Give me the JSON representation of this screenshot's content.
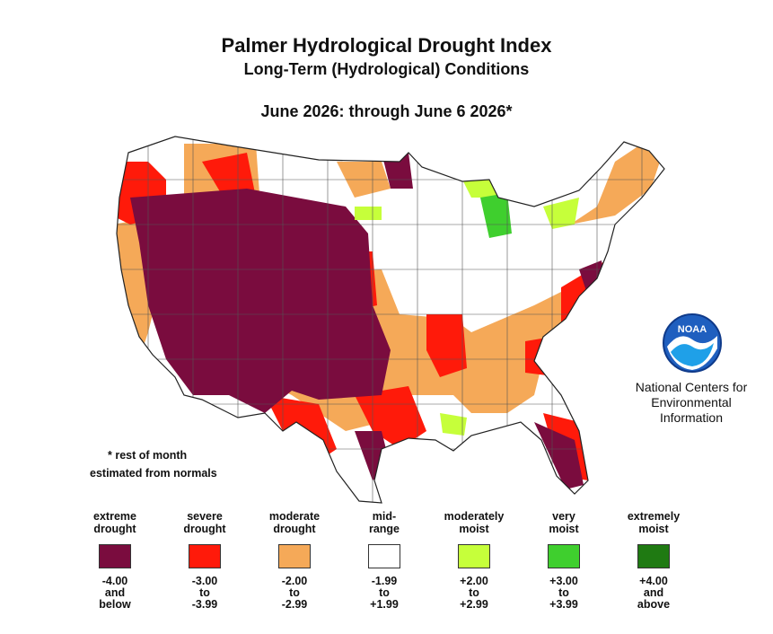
{
  "header": {
    "title": "Palmer Hydrological Drought Index",
    "subtitle": "Long-Term (Hydrological) Conditions",
    "period": "June 2026: through June  6 2026*"
  },
  "notes": {
    "line1": "* rest of month",
    "line2": "estimated from normals"
  },
  "branding": {
    "logo_text": "NOAA",
    "org_line1": "National Centers for",
    "org_line2": "Environmental",
    "org_line3": "Information"
  },
  "legend": [
    {
      "label1": "extreme",
      "label2": "drought",
      "color": "#7a0c3e",
      "r1": "-4.00",
      "r2": "and",
      "r3": "below"
    },
    {
      "label1": "severe",
      "label2": "drought",
      "color": "#ff1a0a",
      "r1": "-3.00",
      "r2": "to",
      "r3": "-3.99"
    },
    {
      "label1": "moderate",
      "label2": "drought",
      "color": "#f5a958",
      "r1": "-2.00",
      "r2": "to",
      "r3": "-2.99"
    },
    {
      "label1": "mid-",
      "label2": "range",
      "color": "#ffffff",
      "r1": "-1.99",
      "r2": "to",
      "r3": "+1.99"
    },
    {
      "label1": "moderately",
      "label2": "moist",
      "color": "#c6ff3a",
      "r1": "+2.00",
      "r2": "to",
      "r3": "+2.99"
    },
    {
      "label1": "very",
      "label2": "moist",
      "color": "#3fcf2e",
      "r1": "+3.00",
      "r2": "to",
      "r3": "+3.99"
    },
    {
      "label1": "extremely",
      "label2": "moist",
      "color": "#1f7a12",
      "r1": "+4.00",
      "r2": "and",
      "r3": "above"
    }
  ]
}
